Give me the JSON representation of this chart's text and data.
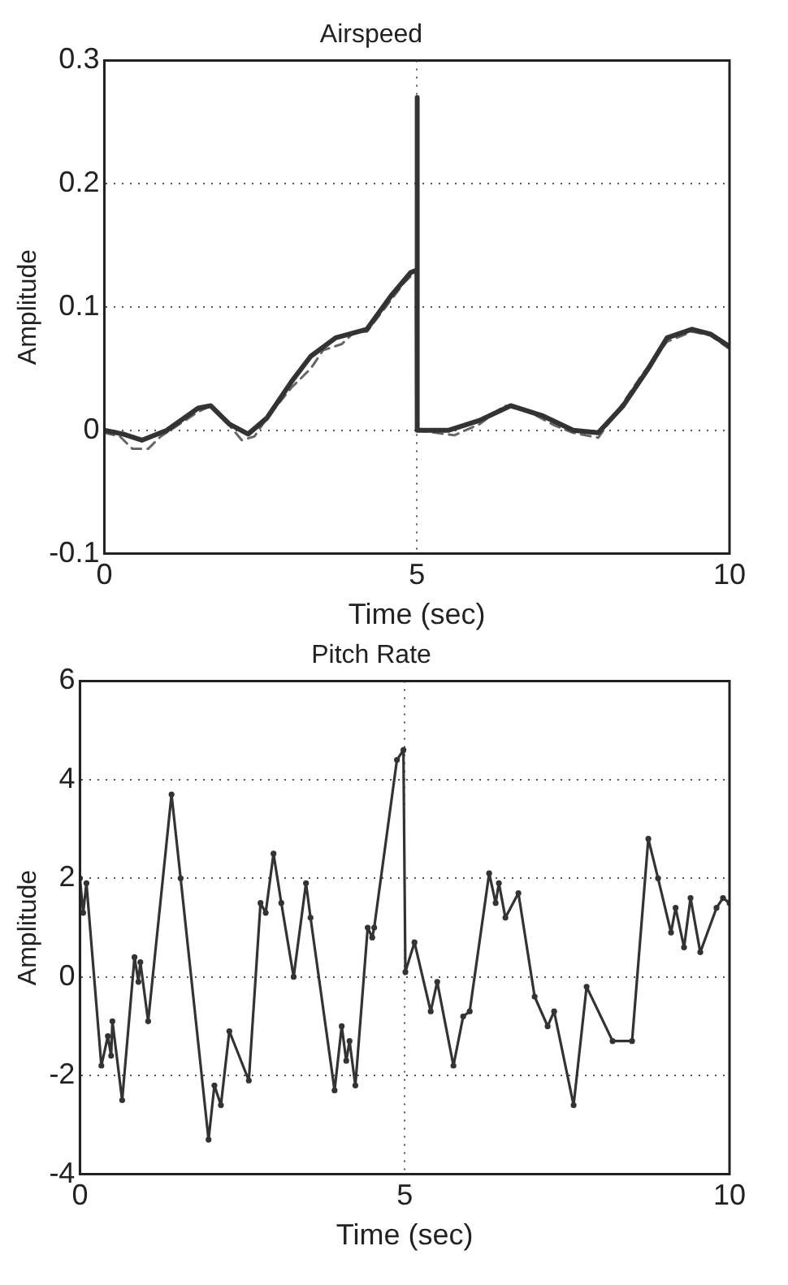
{
  "chart_data": [
    {
      "type": "line",
      "title": "Airspeed",
      "xlabel": "Time (sec)",
      "ylabel": "Amplitude",
      "xlim": [
        0,
        10
      ],
      "ylim": [
        -0.1,
        0.3
      ],
      "xticks": [
        0,
        5,
        10
      ],
      "yticks": [
        -0.1,
        0,
        0.1,
        0.2,
        0.3
      ],
      "grid": true,
      "marker": "none",
      "series": [
        {
          "color": "#333333",
          "line_style": "solid",
          "x": [
            0,
            0.3,
            0.6,
            1.0,
            1.5,
            1.7,
            2.0,
            2.3,
            2.6,
            3.0,
            3.3,
            3.7,
            4.2,
            4.6,
            4.9,
            5.0,
            5.0,
            5.01,
            5.5,
            6.0,
            6.5,
            7.0,
            7.5,
            7.9,
            8.3,
            8.7,
            9.0,
            9.4,
            9.7,
            10
          ],
          "values": [
            0,
            -0.003,
            -0.008,
            0,
            0.018,
            0.02,
            0.005,
            -0.003,
            0.01,
            0.04,
            0.06,
            0.075,
            0.082,
            0.11,
            0.128,
            0.13,
            0.27,
            0,
            0,
            0.008,
            0.02,
            0.012,
            0,
            -0.002,
            0.02,
            0.05,
            0.075,
            0.082,
            0.078,
            0.068
          ]
        },
        {
          "color": "#666666",
          "line_style": "dashed",
          "x": [
            0,
            0.25,
            0.45,
            0.7,
            0.9,
            1.2,
            1.5,
            1.7,
            2.0,
            2.2,
            2.4,
            2.6,
            3.0,
            3.3,
            3.5,
            3.8,
            4.0,
            4.2,
            4.5,
            4.8,
            5.0,
            5.01,
            5.3,
            5.6,
            6.0,
            6.4,
            6.8,
            7.2,
            7.5,
            7.9,
            8.2,
            8.6,
            9.0,
            9.4,
            9.7,
            10
          ],
          "values": [
            -0.002,
            -0.005,
            -0.015,
            -0.015,
            -0.005,
            0.005,
            0.015,
            0.02,
            0.004,
            -0.008,
            -0.005,
            0.01,
            0.035,
            0.05,
            0.065,
            0.07,
            0.08,
            0.08,
            0.1,
            0.12,
            0.13,
            0,
            -0.002,
            -0.004,
            0.005,
            0.02,
            0.015,
            0.004,
            -0.002,
            -0.006,
            0.015,
            0.045,
            0.072,
            0.08,
            0.077,
            0.066
          ]
        }
      ]
    },
    {
      "type": "line",
      "title": "Pitch Rate",
      "xlabel": "Time (sec)",
      "ylabel": "Amplitude",
      "xlim": [
        0,
        10
      ],
      "ylim": [
        -4,
        6
      ],
      "xticks": [
        0,
        5,
        10
      ],
      "yticks": [
        -4,
        -2,
        0,
        2,
        4,
        6
      ],
      "grid": true,
      "marker": "circle",
      "series": [
        {
          "color": "#333333",
          "line_style": "solid",
          "x": [
            0,
            0.05,
            0.1,
            0.33,
            0.43,
            0.48,
            0.5,
            0.65,
            0.84,
            0.9,
            0.93,
            1.05,
            1.41,
            1.55,
            1.98,
            2.07,
            2.17,
            2.3,
            2.6,
            2.78,
            2.86,
            2.98,
            3.1,
            3.29,
            3.48,
            3.55,
            3.92,
            4.03,
            4.1,
            4.15,
            4.24,
            4.43,
            4.5,
            4.53,
            4.88,
            4.98,
            5.01,
            5.15,
            5.4,
            5.5,
            5.75,
            5.9,
            6.0,
            6.3,
            6.4,
            6.45,
            6.55,
            6.75,
            7.0,
            7.2,
            7.3,
            7.6,
            7.8,
            8.2,
            8.5,
            8.75,
            8.9,
            9.1,
            9.17,
            9.3,
            9.4,
            9.55,
            9.8,
            9.9,
            10
          ],
          "values": [
            2.0,
            1.3,
            1.9,
            -1.8,
            -1.2,
            -1.6,
            -0.9,
            -2.5,
            0.4,
            -0.1,
            0.3,
            -0.9,
            3.7,
            2.0,
            -3.3,
            -2.2,
            -2.6,
            -1.1,
            -2.1,
            1.5,
            1.3,
            2.5,
            1.5,
            0,
            1.9,
            1.2,
            -2.3,
            -1.0,
            -1.7,
            -1.3,
            -2.2,
            1.0,
            0.8,
            1.0,
            4.4,
            4.6,
            0.1,
            0.7,
            -0.7,
            -0.1,
            -1.8,
            -0.8,
            -0.7,
            2.1,
            1.5,
            1.9,
            1.2,
            1.7,
            -0.4,
            -1.0,
            -0.7,
            -2.6,
            -0.2,
            -1.3,
            -1.3,
            2.8,
            2.0,
            0.9,
            1.4,
            0.6,
            1.6,
            0.5,
            1.4,
            1.6,
            1.5
          ]
        }
      ]
    }
  ]
}
